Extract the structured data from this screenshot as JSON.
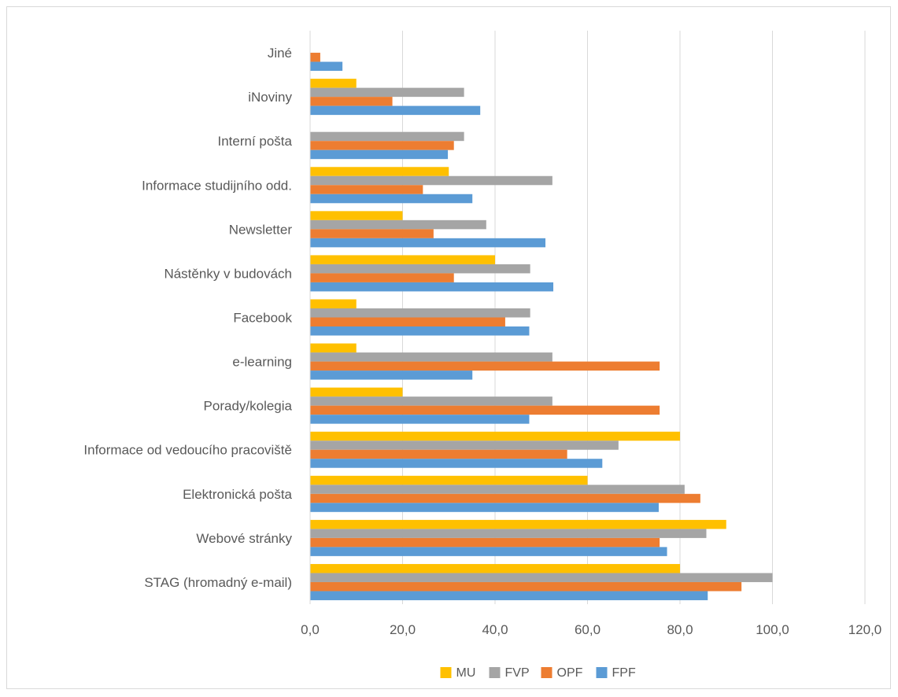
{
  "chart_data": {
    "type": "bar",
    "orientation": "horizontal",
    "categories": [
      "STAG (hromadný e-mail)",
      "Webové stránky",
      "Elektronická pošta",
      "Informace od vedoucího pracoviště",
      "Porady/kolegia",
      "e-learning",
      "Facebook",
      "Nástěnky v budovách",
      "Newsletter",
      "Informace studijního odd.",
      "Interní pošta",
      "iNoviny",
      "Jiné"
    ],
    "series": [
      {
        "name": "MU",
        "color": "#ffc000",
        "values": [
          80.0,
          90.0,
          60.0,
          80.0,
          20.0,
          10.0,
          10.0,
          40.0,
          20.0,
          30.0,
          0.0,
          10.0,
          0.0
        ]
      },
      {
        "name": "FVP",
        "color": "#a5a5a5",
        "values": [
          100.0,
          85.7,
          81.0,
          66.7,
          52.4,
          52.4,
          47.6,
          47.6,
          38.1,
          52.4,
          33.3,
          33.3,
          0.0
        ]
      },
      {
        "name": "OPF",
        "color": "#ed7d31",
        "values": [
          93.3,
          75.6,
          84.4,
          55.6,
          75.6,
          75.6,
          42.2,
          31.1,
          26.7,
          24.4,
          31.1,
          17.8,
          2.2
        ]
      },
      {
        "name": "FPF",
        "color": "#5b9bd5",
        "values": [
          86.0,
          77.2,
          75.4,
          63.2,
          47.4,
          35.1,
          47.4,
          52.6,
          50.9,
          35.1,
          29.8,
          36.8,
          7.0
        ]
      }
    ],
    "series_draw_order": [
      "MU",
      "FVP",
      "OPF",
      "FPF"
    ],
    "xlim": [
      0,
      120
    ],
    "x_ticks": [
      "0,0",
      "20,0",
      "40,0",
      "60,0",
      "80,0",
      "100,0",
      "120,0"
    ],
    "grid": "vertical",
    "legend_position": "bottom",
    "title": "",
    "xlabel": "",
    "ylabel": ""
  }
}
